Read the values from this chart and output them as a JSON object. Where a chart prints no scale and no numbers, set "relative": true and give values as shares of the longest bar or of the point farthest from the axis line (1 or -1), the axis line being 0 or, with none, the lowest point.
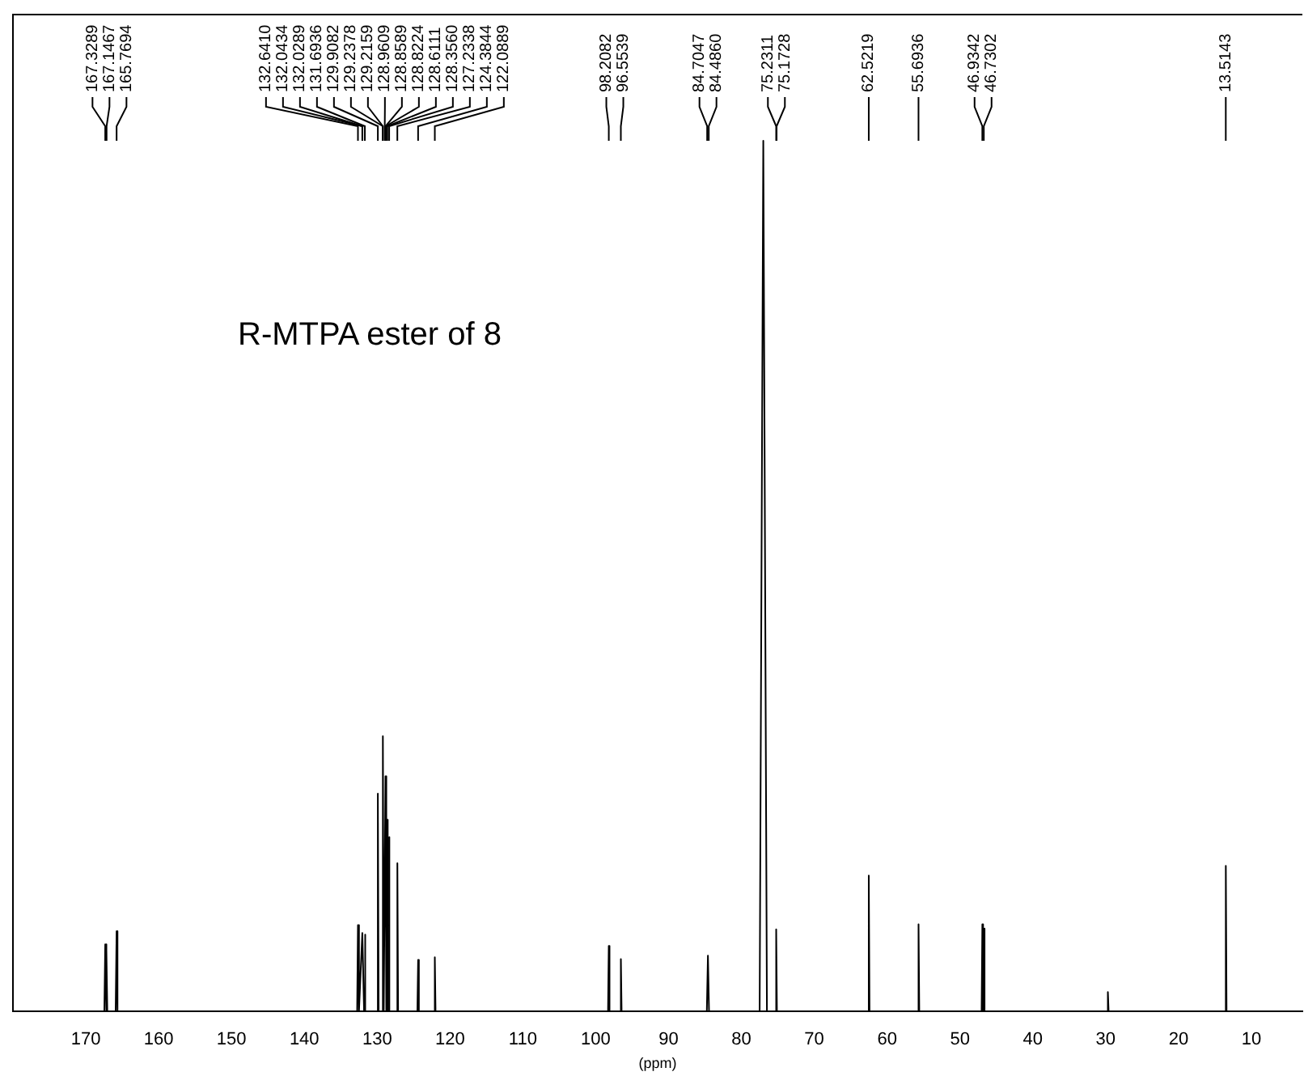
{
  "chart_data": {
    "type": "line",
    "title": "R-MTPA ester of 8",
    "xlabel": "(ppm)",
    "relative": true,
    "xlim": [
      180,
      3
    ],
    "xticks": [
      170,
      160,
      150,
      140,
      130,
      120,
      110,
      100,
      90,
      80,
      70,
      60,
      50,
      40,
      30,
      20,
      10
    ],
    "grid": false,
    "legend": false,
    "tick_labels": "x",
    "marker": "none",
    "line_style": "solid",
    "series": [
      {
        "color": "#000000",
        "x": [
          180,
          167.45,
          167.33,
          167.2,
          167.15,
          167.05,
          165.9,
          165.77,
          165.65,
          132.75,
          132.64,
          132.5,
          132.04,
          131.8,
          131.69,
          131.6,
          130.0,
          129.91,
          129.8,
          129.3,
          129.22,
          129.1,
          128.95,
          128.86,
          128.75,
          128.68,
          128.61,
          128.5,
          128.42,
          128.36,
          128.3,
          127.33,
          127.23,
          127.13,
          124.48,
          124.38,
          124.28,
          122.19,
          122.09,
          121.99,
          98.31,
          98.21,
          98.11,
          96.65,
          96.55,
          96.45,
          84.75,
          84.6,
          84.45,
          77.5,
          77.0,
          76.5,
          75.33,
          75.23,
          75.13,
          62.62,
          62.52,
          62.42,
          55.79,
          55.69,
          55.59,
          47.03,
          46.93,
          46.83,
          46.73,
          46.63,
          29.8,
          29.7,
          29.6,
          13.61,
          13.51,
          13.41,
          3
        ],
        "values": [
          0,
          0,
          0.077,
          0,
          0.07,
          0,
          0,
          0.092,
          0,
          0,
          0.099,
          0,
          0.09,
          0,
          0.088,
          0,
          0,
          0.25,
          0,
          0,
          0.316,
          0,
          0,
          0.27,
          0,
          0,
          0.22,
          0,
          0,
          0.2,
          0,
          0,
          0.17,
          0,
          0,
          0.059,
          0,
          0,
          0.062,
          0,
          0,
          0.075,
          0,
          0,
          0.06,
          0,
          0,
          0.064,
          0,
          0,
          1,
          0,
          0,
          0.094,
          0,
          0,
          0.156,
          0,
          0,
          0.1,
          0,
          0,
          0.1,
          0,
          0.095,
          0,
          0,
          0.022,
          0,
          0,
          0.167,
          0,
          0
        ]
      }
    ],
    "annotations": [
      {
        "text": "167.3289",
        "x": 167.3289
      },
      {
        "text": "167.1467",
        "x": 167.1467
      },
      {
        "text": "165.7694",
        "x": 165.7694
      },
      {
        "text": "132.6410",
        "x": 132.641
      },
      {
        "text": "132.0434",
        "x": 132.0434
      },
      {
        "text": "132.0289",
        "x": 132.0289
      },
      {
        "text": "131.6936",
        "x": 131.6936
      },
      {
        "text": "129.9082",
        "x": 129.9082
      },
      {
        "text": "129.2378",
        "x": 129.2378
      },
      {
        "text": "129.2159",
        "x": 129.2159
      },
      {
        "text": "128.9609",
        "x": 128.9609
      },
      {
        "text": "128.8589",
        "x": 128.8589
      },
      {
        "text": "128.8224",
        "x": 128.8224
      },
      {
        "text": "128.6111",
        "x": 128.6111
      },
      {
        "text": "128.3560",
        "x": 128.356
      },
      {
        "text": "127.2338",
        "x": 127.2338
      },
      {
        "text": "124.3844",
        "x": 124.3844
      },
      {
        "text": "122.0889",
        "x": 122.0889
      },
      {
        "text": "98.2082",
        "x": 98.2082
      },
      {
        "text": "96.5539",
        "x": 96.5539
      },
      {
        "text": "84.7047",
        "x": 84.7047
      },
      {
        "text": "84.4860",
        "x": 84.486
      },
      {
        "text": "75.2311",
        "x": 75.2311
      },
      {
        "text": "75.1728",
        "x": 75.1728
      },
      {
        "text": "62.5219",
        "x": 62.5219
      },
      {
        "text": "55.6936",
        "x": 55.6936
      },
      {
        "text": "46.9342",
        "x": 46.9342
      },
      {
        "text": "46.7302",
        "x": 46.7302
      },
      {
        "text": "13.5143",
        "x": 13.5143
      }
    ]
  }
}
